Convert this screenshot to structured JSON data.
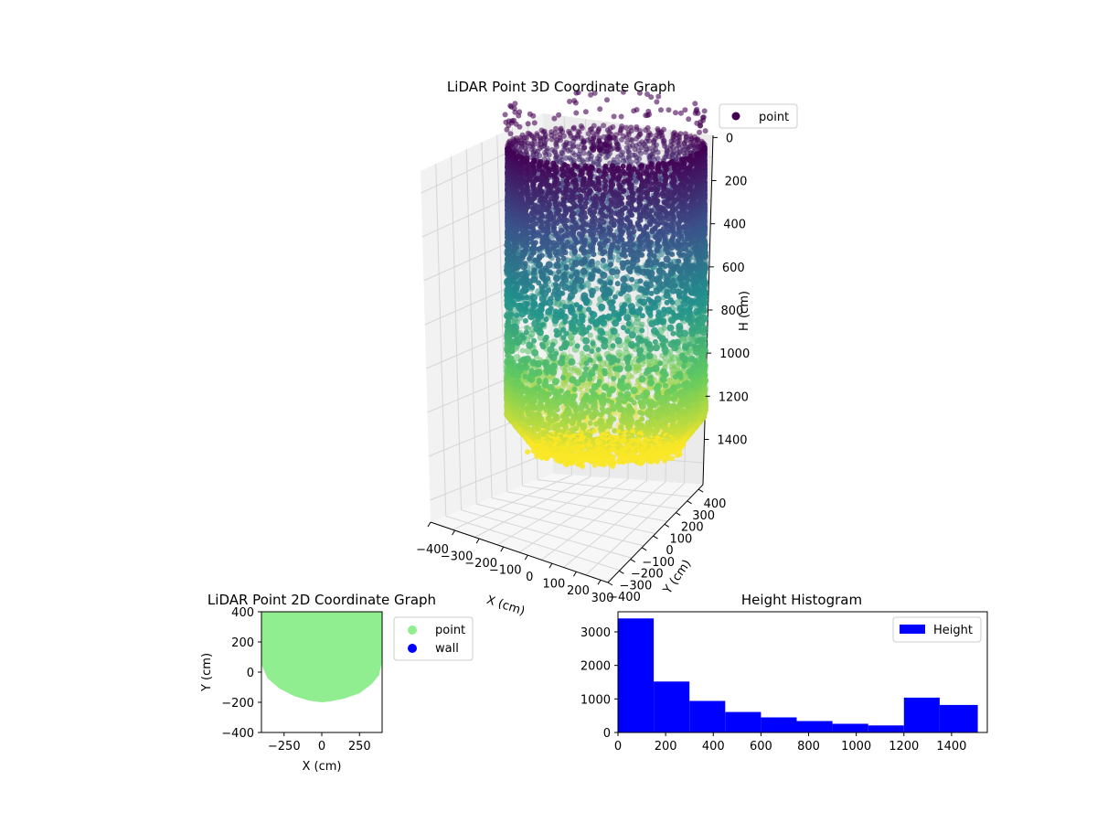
{
  "colors": {
    "viridis": [
      "#440154",
      "#3b528b",
      "#21918c",
      "#5ec962",
      "#fde725"
    ],
    "pane": "#f2f2f2",
    "grid": "#d6d6d6",
    "point_2d": "#90ee90",
    "wall_2d": "#0000ff",
    "hist": "#0000ff"
  },
  "chart_data": [
    {
      "type": "scatter",
      "projection": "3d",
      "title": "LiDAR Point 3D Coordinate Graph",
      "xlabel": "X (cm)",
      "ylabel": "Y (cm)",
      "zlabel": "H (cm)",
      "x_ticks": [
        "−400",
        "−300",
        "−200",
        "−100",
        "0",
        "100",
        "200",
        "300"
      ],
      "y_ticks": [
        "−400",
        "−300",
        "−200",
        "−100",
        "0",
        "100",
        "200",
        "300",
        "400"
      ],
      "z_ticks": [
        "0",
        "200",
        "400",
        "600",
        "800",
        "1000",
        "1200",
        "1400"
      ],
      "z_inverted": true,
      "xlim": [
        -400,
        400
      ],
      "ylim": [
        -400,
        400
      ],
      "zlim": [
        0,
        1500
      ],
      "colormap": "viridis",
      "legend": [
        "point"
      ],
      "legend_loc": "upper-right",
      "series": [
        {
          "name": "point",
          "description_shape": "cylindrical wall of points, radius about 400 cm, dense near top (H 0-500) and bottom (H 1150-1500), sparse in middle",
          "radius": 400,
          "h_range": [
            0,
            1500
          ]
        }
      ]
    },
    {
      "type": "scatter",
      "title": "LiDAR Point 2D Coordinate Graph",
      "xlabel": "X (cm)",
      "ylabel": "Y (cm)",
      "x_ticks": [
        "−250",
        "0",
        "250"
      ],
      "y_ticks": [
        "−400",
        "−200",
        "0",
        "200",
        "400"
      ],
      "xlim": [
        -400,
        400
      ],
      "ylim": [
        -400,
        400
      ],
      "legend": [
        "point",
        "wall"
      ],
      "legend_loc": "outside-right",
      "outline": [
        [
          -400,
          400
        ],
        [
          400,
          400
        ],
        [
          400,
          70
        ],
        [
          380,
          -20
        ],
        [
          330,
          -80
        ],
        [
          250,
          -140
        ],
        [
          150,
          -175
        ],
        [
          50,
          -195
        ],
        [
          0,
          -200
        ],
        [
          -80,
          -190
        ],
        [
          -180,
          -160
        ],
        [
          -280,
          -110
        ],
        [
          -360,
          -40
        ],
        [
          -400,
          50
        ]
      ]
    },
    {
      "type": "bar",
      "title": "Height Histogram",
      "xlabel": "",
      "ylabel": "",
      "x_ticks": [
        "0",
        "200",
        "400",
        "600",
        "800",
        "1000",
        "1200",
        "1400"
      ],
      "y_ticks": [
        "0",
        "1000",
        "2000",
        "3000"
      ],
      "xlim": [
        0,
        1550
      ],
      "ylim": [
        0,
        3600
      ],
      "bin_edges": [
        0,
        150,
        300,
        450,
        600,
        750,
        900,
        1050,
        1200,
        1350,
        1510
      ],
      "values": [
        3400,
        1520,
        940,
        610,
        450,
        340,
        260,
        210,
        1040,
        820
      ],
      "series": [
        {
          "name": "Height"
        }
      ],
      "legend_loc": "upper-right"
    }
  ]
}
